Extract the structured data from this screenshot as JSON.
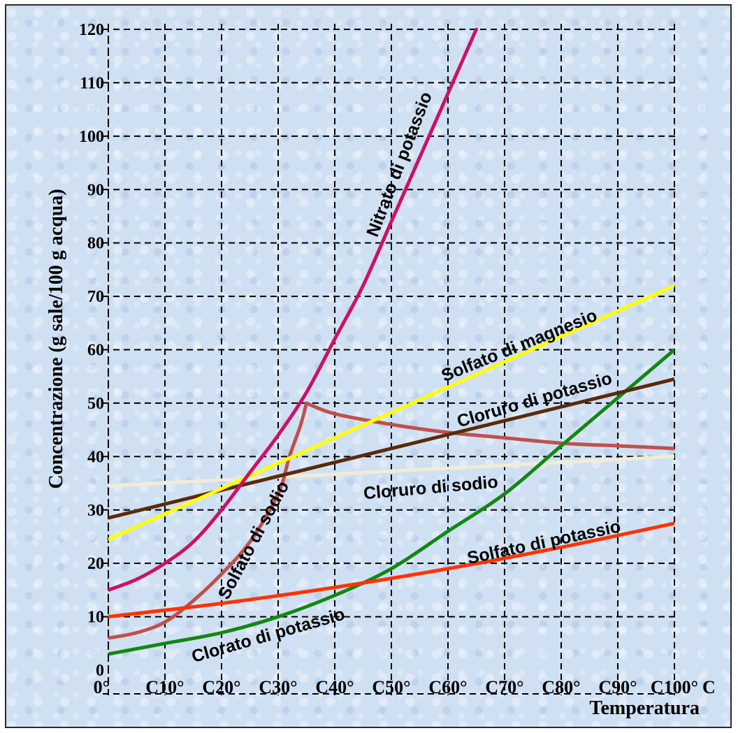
{
  "chart_data": {
    "type": "line",
    "xlabel": "Temperatura",
    "ylabel": "Concentrazione (g sale/100 g acqua)",
    "xlim": [
      0,
      100
    ],
    "ylim": [
      0,
      120
    ],
    "grid": true,
    "x_tick_labels": [
      "0°",
      "C10°",
      "C20°",
      "C30°",
      "C40°",
      "C50°",
      "C60°",
      "C70°",
      "C80°",
      "C90°",
      "C100°",
      "C"
    ],
    "y_ticks": [
      0,
      10,
      20,
      30,
      40,
      50,
      60,
      70,
      80,
      90,
      100,
      110,
      120
    ],
    "series": [
      {
        "name": "Nitrato di potassio",
        "color": "#cc1166",
        "x": [
          0,
          5,
          10,
          15,
          20,
          25,
          30,
          35,
          40,
          45,
          50,
          55,
          60,
          65
        ],
        "y": [
          15,
          17,
          20,
          24,
          30,
          37,
          44,
          52,
          62,
          72,
          84,
          96,
          108,
          120
        ]
      },
      {
        "name": "Solfato di magnesio",
        "color": "#ffff00",
        "x": [
          0,
          100
        ],
        "y": [
          24.5,
          72
        ]
      },
      {
        "name": "Cloruro di potassio",
        "color": "#5a2a08",
        "x": [
          0,
          100
        ],
        "y": [
          28.5,
          54.5
        ]
      },
      {
        "name": "Cloruro di sodio",
        "color": "#f2ecd6",
        "x": [
          0,
          100
        ],
        "y": [
          34.5,
          40
        ]
      },
      {
        "name": "Solfato di sodio",
        "color": "#c0504d",
        "x": [
          0,
          5,
          10,
          15,
          20,
          25,
          30,
          32,
          34,
          35,
          40,
          50,
          60,
          70,
          80,
          90,
          100
        ],
        "y": [
          6,
          7,
          9,
          13,
          18,
          24,
          33,
          40,
          46,
          50,
          48,
          46,
          44.5,
          43.5,
          42.5,
          42,
          41.5
        ]
      },
      {
        "name": "Solfato di potassio",
        "color": "#ff3300",
        "x": [
          0,
          20,
          40,
          60,
          80,
          100
        ],
        "y": [
          10,
          12.5,
          15.5,
          19,
          23,
          27.5
        ]
      },
      {
        "name": "Clorato di potassio",
        "color": "#118811",
        "x": [
          0,
          10,
          20,
          30,
          40,
          50,
          60,
          70,
          80,
          90,
          100
        ],
        "y": [
          3,
          5,
          7,
          10,
          14,
          19,
          26,
          33,
          42,
          51,
          60
        ]
      }
    ],
    "annotations": [
      "Nitrato di potassio",
      "Solfato di magnesio",
      "Cloruro di potassio",
      "Cloruro di sodio",
      "Solfato di sodio",
      "Solfato di potassio",
      "Clorato di potassio"
    ]
  }
}
